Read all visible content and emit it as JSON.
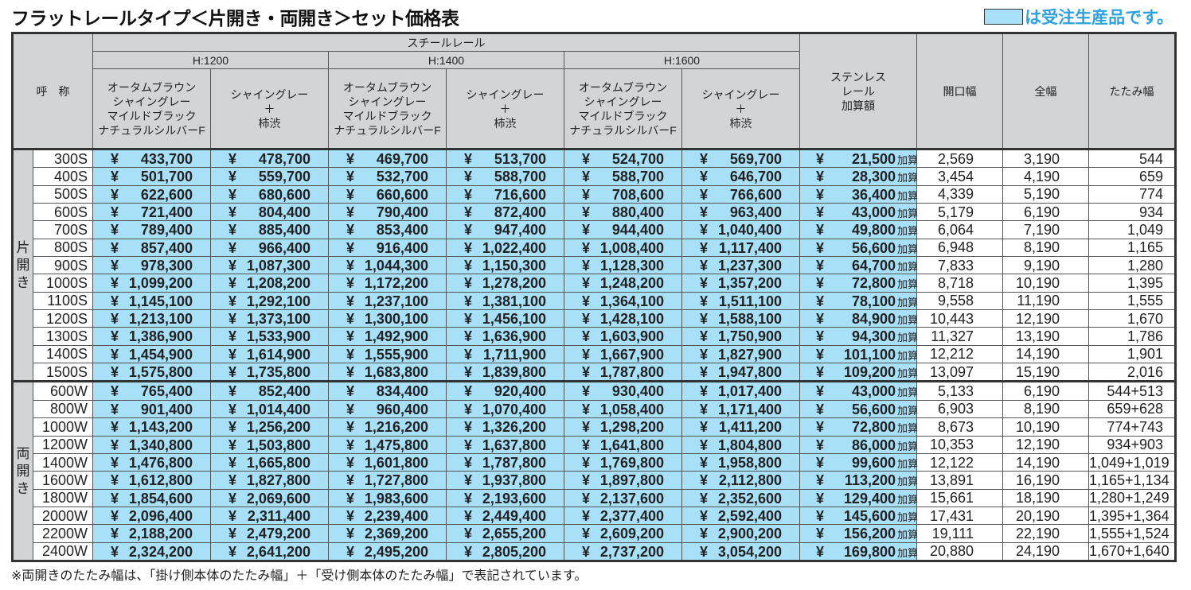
{
  "title": "フラットレールタイプ＜片開き・両開き＞セット価格表",
  "legend": {
    "text": "は受注生産品です。",
    "made_to_order_color": "#a8e0f8",
    "text_color": "#2aa3e0"
  },
  "header": {
    "name": "呼　称",
    "steel_rail": "スチールレール",
    "heights": [
      "H:1200",
      "H:1400",
      "H:1600"
    ],
    "color_a": [
      "オータムブラウン",
      "シャイングレー",
      "マイルドブラック",
      "ナチュラルシルバーF"
    ],
    "color_b": [
      "シャイングレー",
      "＋",
      "柿渋"
    ],
    "stainless": [
      "ステンレス",
      "レール",
      "加算額"
    ],
    "opening_width": "開口幅",
    "total_width": "全幅",
    "folded_width": "たたみ幅"
  },
  "currency": "¥",
  "addition_unit": "加算",
  "groups": [
    {
      "label": [
        "片",
        "開",
        "き"
      ],
      "rows": [
        {
          "name": "300S",
          "prices": [
            "433,700",
            "478,700",
            "469,700",
            "513,700",
            "524,700",
            "569,700"
          ],
          "stainless": "21,500",
          "opening": "2,569",
          "total": "3,190",
          "folded": "544"
        },
        {
          "name": "400S",
          "prices": [
            "501,700",
            "559,700",
            "532,700",
            "588,700",
            "588,700",
            "646,700"
          ],
          "stainless": "28,300",
          "opening": "3,454",
          "total": "4,190",
          "folded": "659"
        },
        {
          "name": "500S",
          "prices": [
            "622,600",
            "680,600",
            "660,600",
            "716,600",
            "708,600",
            "766,600"
          ],
          "stainless": "36,400",
          "opening": "4,339",
          "total": "5,190",
          "folded": "774"
        },
        {
          "name": "600S",
          "prices": [
            "721,400",
            "804,400",
            "790,400",
            "872,400",
            "880,400",
            "963,400"
          ],
          "stainless": "43,000",
          "opening": "5,179",
          "total": "6,190",
          "folded": "934"
        },
        {
          "name": "700S",
          "prices": [
            "789,400",
            "885,400",
            "853,400",
            "947,400",
            "944,400",
            "1,040,400"
          ],
          "stainless": "49,800",
          "opening": "6,064",
          "total": "7,190",
          "folded": "1,049"
        },
        {
          "name": "800S",
          "prices": [
            "857,400",
            "966,400",
            "916,400",
            "1,022,400",
            "1,008,400",
            "1,117,400"
          ],
          "stainless": "56,600",
          "opening": "6,948",
          "total": "8,190",
          "folded": "1,165"
        },
        {
          "name": "900S",
          "prices": [
            "978,300",
            "1,087,300",
            "1,044,300",
            "1,150,300",
            "1,128,300",
            "1,237,300"
          ],
          "stainless": "64,700",
          "opening": "7,833",
          "total": "9,190",
          "folded": "1,280"
        },
        {
          "name": "1000S",
          "prices": [
            "1,099,200",
            "1,208,200",
            "1,172,200",
            "1,278,200",
            "1,248,200",
            "1,357,200"
          ],
          "stainless": "72,800",
          "opening": "8,718",
          "total": "10,190",
          "folded": "1,395"
        },
        {
          "name": "1100S",
          "prices": [
            "1,145,100",
            "1,292,100",
            "1,237,100",
            "1,381,100",
            "1,364,100",
            "1,511,100"
          ],
          "stainless": "78,100",
          "opening": "9,558",
          "total": "11,190",
          "folded": "1,555"
        },
        {
          "name": "1200S",
          "prices": [
            "1,213,100",
            "1,373,100",
            "1,300,100",
            "1,456,100",
            "1,428,100",
            "1,588,100"
          ],
          "stainless": "84,900",
          "opening": "10,443",
          "total": "12,190",
          "folded": "1,670"
        },
        {
          "name": "1300S",
          "prices": [
            "1,386,900",
            "1,533,900",
            "1,492,900",
            "1,636,900",
            "1,603,900",
            "1,750,900"
          ],
          "stainless": "94,300",
          "opening": "11,327",
          "total": "13,190",
          "folded": "1,786"
        },
        {
          "name": "1400S",
          "prices": [
            "1,454,900",
            "1,614,900",
            "1,555,900",
            "1,711,900",
            "1,667,900",
            "1,827,900"
          ],
          "stainless": "101,100",
          "opening": "12,212",
          "total": "14,190",
          "folded": "1,901"
        },
        {
          "name": "1500S",
          "prices": [
            "1,575,800",
            "1,735,800",
            "1,683,800",
            "1,839,800",
            "1,787,800",
            "1,947,800"
          ],
          "stainless": "109,200",
          "opening": "13,097",
          "total": "15,190",
          "folded": "2,016"
        }
      ]
    },
    {
      "label": [
        "両",
        "開",
        "き"
      ],
      "rows": [
        {
          "name": "600W",
          "prices": [
            "765,400",
            "852,400",
            "834,400",
            "920,400",
            "930,400",
            "1,017,400"
          ],
          "stainless": "43,000",
          "opening": "5,133",
          "total": "6,190",
          "folded": "544+513"
        },
        {
          "name": "800W",
          "prices": [
            "901,400",
            "1,014,400",
            "960,400",
            "1,070,400",
            "1,058,400",
            "1,171,400"
          ],
          "stainless": "56,600",
          "opening": "6,903",
          "total": "8,190",
          "folded": "659+628"
        },
        {
          "name": "1000W",
          "prices": [
            "1,143,200",
            "1,256,200",
            "1,216,200",
            "1,326,200",
            "1,298,200",
            "1,411,200"
          ],
          "stainless": "72,800",
          "opening": "8,673",
          "total": "10,190",
          "folded": "774+743"
        },
        {
          "name": "1200W",
          "prices": [
            "1,340,800",
            "1,503,800",
            "1,475,800",
            "1,637,800",
            "1,641,800",
            "1,804,800"
          ],
          "stainless": "86,000",
          "opening": "10,353",
          "total": "12,190",
          "folded": "934+903"
        },
        {
          "name": "1400W",
          "prices": [
            "1,476,800",
            "1,665,800",
            "1,601,800",
            "1,787,800",
            "1,769,800",
            "1,958,800"
          ],
          "stainless": "99,600",
          "opening": "12,122",
          "total": "14,190",
          "folded": "1,049+1,019"
        },
        {
          "name": "1600W",
          "prices": [
            "1,612,800",
            "1,827,800",
            "1,727,800",
            "1,937,800",
            "1,897,800",
            "2,112,800"
          ],
          "stainless": "113,200",
          "opening": "13,891",
          "total": "16,190",
          "folded": "1,165+1,134"
        },
        {
          "name": "1800W",
          "prices": [
            "1,854,600",
            "2,069,600",
            "1,983,600",
            "2,193,600",
            "2,137,600",
            "2,352,600"
          ],
          "stainless": "129,400",
          "opening": "15,661",
          "total": "18,190",
          "folded": "1,280+1,249"
        },
        {
          "name": "2000W",
          "prices": [
            "2,096,400",
            "2,311,400",
            "2,239,400",
            "2,449,400",
            "2,377,400",
            "2,592,400"
          ],
          "stainless": "145,600",
          "opening": "17,431",
          "total": "20,190",
          "folded": "1,395+1,364"
        },
        {
          "name": "2200W",
          "prices": [
            "2,188,200",
            "2,479,200",
            "2,369,200",
            "2,655,200",
            "2,609,200",
            "2,900,200"
          ],
          "stainless": "156,200",
          "opening": "19,111",
          "total": "22,190",
          "folded": "1,555+1,524"
        },
        {
          "name": "2400W",
          "prices": [
            "2,324,200",
            "2,641,200",
            "2,495,200",
            "2,805,200",
            "2,737,200",
            "3,054,200"
          ],
          "stainless": "169,800",
          "opening": "20,880",
          "total": "24,190",
          "folded": "1,670+1,640"
        }
      ]
    }
  ],
  "footnote": "※両開きのたたみ幅は、「掛け側本体のたたみ幅」＋「受け側本体のたたみ幅」で表記されています。"
}
